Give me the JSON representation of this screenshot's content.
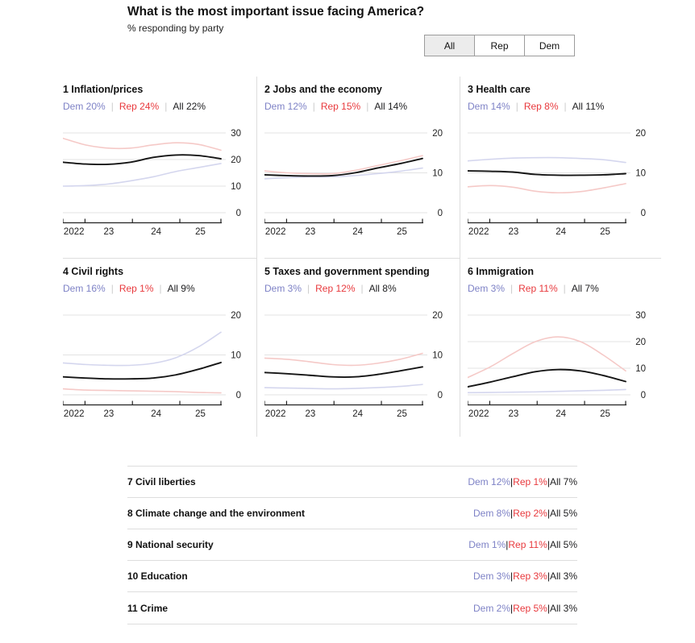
{
  "header": {
    "title": "What is the most important issue facing America?",
    "subtitle": "% responding by party"
  },
  "toggle": {
    "options": [
      "All",
      "Rep",
      "Dem"
    ],
    "selected": "All"
  },
  "colors": {
    "dem_text": "#7e82c6",
    "rep_text": "#e8393d",
    "all_text": "#1d1d1f",
    "dem_line": "#d4d6ee",
    "rep_line": "#f5c9c7",
    "all_line": "#151515",
    "grid_line": "#e3e3e3",
    "axis": "#222222",
    "divider": "#dddddd"
  },
  "chart_data": [
    {
      "type": "line",
      "title": "1 Inflation/prices",
      "legend": {
        "dem": "Dem 20%",
        "rep": "Rep 24%",
        "all": "All 22%"
      },
      "x": [
        2022.0,
        2022.5,
        2023.0,
        2023.5,
        2024.0,
        2024.5,
        2025.0,
        2025.5
      ],
      "x_tick_labels": [
        "2022",
        "23",
        "24",
        "25"
      ],
      "ylim": [
        0,
        30
      ],
      "yticks": [
        0,
        10,
        20,
        30
      ],
      "series": [
        {
          "name": "Dem",
          "values": [
            10,
            10.2,
            10.8,
            12,
            13.5,
            15.5,
            17,
            18.5
          ]
        },
        {
          "name": "Rep",
          "values": [
            28,
            25.5,
            24.3,
            24.3,
            25.5,
            26.3,
            25.7,
            23.5
          ]
        },
        {
          "name": "All",
          "values": [
            19,
            18.3,
            18.2,
            19,
            20.8,
            21.7,
            21.5,
            20.3
          ]
        }
      ]
    },
    {
      "type": "line",
      "title": "2 Jobs and the economy",
      "legend": {
        "dem": "Dem 12%",
        "rep": "Rep 15%",
        "all": "All 14%"
      },
      "x": [
        2022.0,
        2022.5,
        2023.0,
        2023.5,
        2024.0,
        2024.5,
        2025.0,
        2025.5
      ],
      "x_tick_labels": [
        "2022",
        "23",
        "24",
        "25"
      ],
      "ylim": [
        0,
        20
      ],
      "yticks": [
        0,
        10,
        20
      ],
      "series": [
        {
          "name": "Dem",
          "values": [
            8.5,
            8.8,
            9,
            9,
            9.3,
            9.8,
            10.4,
            11.2
          ]
        },
        {
          "name": "Rep",
          "values": [
            10.5,
            10,
            9.8,
            9.8,
            10.6,
            11.8,
            13,
            14.3
          ]
        },
        {
          "name": "All",
          "values": [
            9.5,
            9.3,
            9.2,
            9.3,
            10,
            11.2,
            12.3,
            13.6
          ]
        }
      ]
    },
    {
      "type": "line",
      "title": "3 Health care",
      "legend": {
        "dem": "Dem 14%",
        "rep": "Rep 8%",
        "all": "All 11%"
      },
      "x": [
        2022.0,
        2022.5,
        2023.0,
        2023.5,
        2024.0,
        2024.5,
        2025.0,
        2025.5
      ],
      "x_tick_labels": [
        "2022",
        "23",
        "24",
        "25"
      ],
      "ylim": [
        0,
        20
      ],
      "yticks": [
        0,
        10,
        20
      ],
      "series": [
        {
          "name": "Dem",
          "values": [
            13,
            13.4,
            13.7,
            13.8,
            13.8,
            13.6,
            13.3,
            12.6
          ]
        },
        {
          "name": "Rep",
          "values": [
            6.5,
            6.8,
            6.4,
            5.4,
            5,
            5.3,
            6.2,
            7.3
          ]
        },
        {
          "name": "All",
          "values": [
            10.5,
            10.4,
            10.2,
            9.6,
            9.4,
            9.4,
            9.5,
            9.8
          ]
        }
      ]
    },
    {
      "type": "line",
      "title": "4 Civil rights",
      "legend": {
        "dem": "Dem 16%",
        "rep": "Rep 1%",
        "all": "All 9%"
      },
      "x": [
        2022.0,
        2022.5,
        2023.0,
        2023.5,
        2024.0,
        2024.5,
        2025.0,
        2025.5
      ],
      "x_tick_labels": [
        "2022",
        "23",
        "24",
        "25"
      ],
      "ylim": [
        0,
        20
      ],
      "yticks": [
        0,
        10,
        20
      ],
      "series": [
        {
          "name": "Dem",
          "values": [
            8,
            7.6,
            7.4,
            7.4,
            7.9,
            9.3,
            12,
            15.7
          ]
        },
        {
          "name": "Rep",
          "values": [
            1.5,
            1.2,
            1.1,
            1,
            0.9,
            0.8,
            0.6,
            0.5
          ]
        },
        {
          "name": "All",
          "values": [
            4.5,
            4.2,
            4,
            4,
            4.2,
            5,
            6.4,
            8.1
          ]
        }
      ]
    },
    {
      "type": "line",
      "title": "5 Taxes and government spending",
      "legend": {
        "dem": "Dem 3%",
        "rep": "Rep 12%",
        "all": "All 8%"
      },
      "x": [
        2022.0,
        2022.5,
        2023.0,
        2023.5,
        2024.0,
        2024.5,
        2025.0,
        2025.5
      ],
      "x_tick_labels": [
        "2022",
        "23",
        "24",
        "25"
      ],
      "ylim": [
        0,
        20
      ],
      "yticks": [
        0,
        10,
        20
      ],
      "series": [
        {
          "name": "Dem",
          "values": [
            1.8,
            1.7,
            1.6,
            1.5,
            1.6,
            1.8,
            2.1,
            2.6
          ]
        },
        {
          "name": "Rep",
          "values": [
            9.2,
            8.9,
            8.3,
            7.6,
            7.4,
            7.9,
            8.9,
            10.4
          ]
        },
        {
          "name": "All",
          "values": [
            5.6,
            5.3,
            4.9,
            4.5,
            4.5,
            5.1,
            6,
            7
          ]
        }
      ]
    },
    {
      "type": "line",
      "title": "6 Immigration",
      "legend": {
        "dem": "Dem 3%",
        "rep": "Rep 11%",
        "all": "All 7%"
      },
      "x": [
        2022.0,
        2022.5,
        2023.0,
        2023.5,
        2024.0,
        2024.5,
        2025.0,
        2025.5
      ],
      "x_tick_labels": [
        "2022",
        "23",
        "24",
        "25"
      ],
      "ylim": [
        0,
        30
      ],
      "yticks": [
        0,
        10,
        20,
        30
      ],
      "series": [
        {
          "name": "Dem",
          "values": [
            0.8,
            0.9,
            1,
            1.1,
            1.3,
            1.5,
            1.7,
            2
          ]
        },
        {
          "name": "Rep",
          "values": [
            6.5,
            10.5,
            15.5,
            20,
            21.8,
            20,
            15,
            9
          ]
        },
        {
          "name": "All",
          "values": [
            3,
            4.8,
            6.8,
            8.7,
            9.5,
            9,
            7.3,
            5
          ]
        }
      ]
    }
  ],
  "table": {
    "rows": [
      {
        "label": "7 Civil liberties",
        "dem": "Dem 12%",
        "rep": "Rep 1%",
        "all": "All 7%"
      },
      {
        "label": "8 Climate change and the environment",
        "dem": "Dem 8%",
        "rep": "Rep 2%",
        "all": "All 5%"
      },
      {
        "label": "9 National security",
        "dem": "Dem 1%",
        "rep": "Rep 11%",
        "all": "All 5%"
      },
      {
        "label": "10 Education",
        "dem": "Dem 3%",
        "rep": "Rep 3%",
        "all": "All 3%"
      },
      {
        "label": "11 Crime",
        "dem": "Dem 2%",
        "rep": "Rep 5%",
        "all": "All 3%"
      }
    ]
  }
}
